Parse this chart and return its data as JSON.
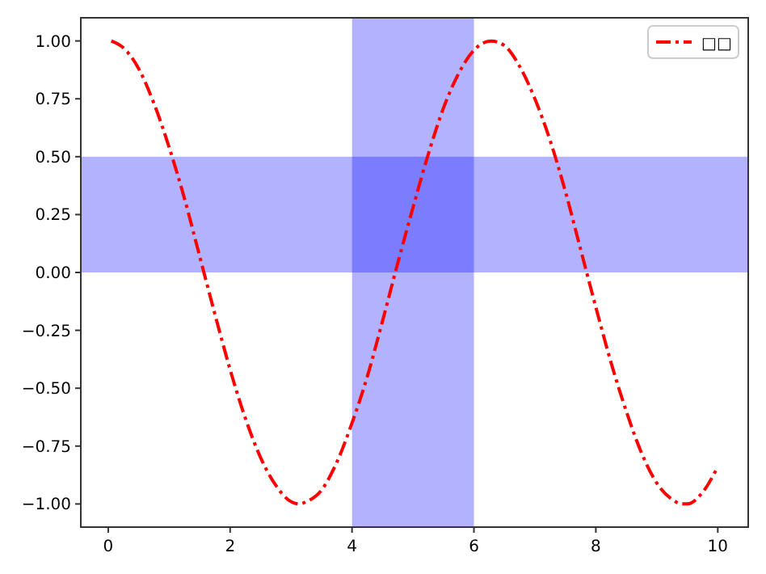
{
  "chart_data": {
    "type": "line",
    "x": [
      0.05,
      0.25,
      0.5,
      0.75,
      1,
      1.25,
      1.5,
      1.75,
      2,
      2.25,
      2.5,
      2.75,
      3,
      3.14,
      3.25,
      3.5,
      3.75,
      4,
      4.25,
      4.5,
      4.75,
      5,
      5.25,
      5.5,
      5.75,
      6,
      6.28,
      6.5,
      6.75,
      7,
      7.25,
      7.5,
      7.75,
      8,
      8.25,
      8.5,
      8.75,
      9,
      9.25,
      9.42,
      9.5,
      9.75,
      10
    ],
    "series": [
      {
        "name": "□□",
        "color": "#ff0000",
        "values": [
          1.0,
          0.97,
          0.88,
          0.73,
          0.54,
          0.32,
          0.07,
          -0.18,
          -0.42,
          -0.63,
          -0.8,
          -0.92,
          -0.99,
          -1.0,
          -0.99,
          -0.94,
          -0.82,
          -0.65,
          -0.45,
          -0.21,
          0.04,
          0.28,
          0.51,
          0.71,
          0.86,
          0.96,
          1.0,
          0.98,
          0.89,
          0.75,
          0.57,
          0.35,
          0.1,
          -0.15,
          -0.39,
          -0.6,
          -0.78,
          -0.91,
          -0.98,
          -1.0,
          -1.0,
          -0.95,
          -0.84
        ]
      }
    ],
    "xlim": [
      -0.45,
      10.5
    ],
    "ylim": [
      -1.1,
      1.1
    ],
    "xticks": [
      0,
      2,
      4,
      6,
      8,
      10
    ],
    "yticks": [
      {
        "value": -1,
        "label": "−1.00"
      },
      {
        "value": -0.75,
        "label": "−0.75"
      },
      {
        "value": -0.5,
        "label": "−0.50"
      },
      {
        "value": -0.25,
        "label": "−0.25"
      },
      {
        "value": 0,
        "label": "0.00"
      },
      {
        "value": 0.25,
        "label": "0.25"
      },
      {
        "value": 0.5,
        "label": "0.50"
      },
      {
        "value": 0.75,
        "label": "0.75"
      },
      {
        "value": 1,
        "label": "1.00"
      }
    ],
    "bands": [
      {
        "axis": "x",
        "from": 4,
        "to": 6,
        "color": "#0000ff"
      },
      {
        "axis": "y",
        "from": 0,
        "to": 0.5,
        "color": "#0000ff"
      }
    ],
    "line_style": "dashdot",
    "grid": false,
    "legend": "top right"
  }
}
